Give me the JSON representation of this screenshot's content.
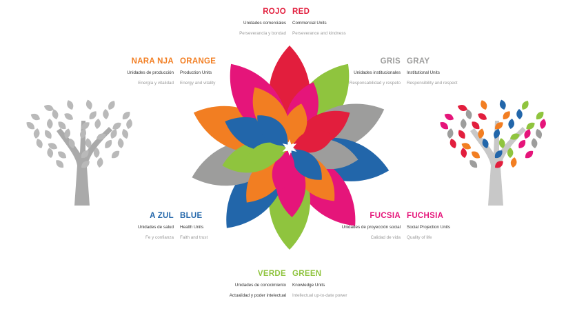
{
  "categories": [
    {
      "key": "red",
      "color": "#e21e3d",
      "es_title": "ROJO",
      "en_title": "RED",
      "es_unit": "Unidades comerciales",
      "en_unit": "Commercial Units",
      "es_value": "Perseverancia y bondad",
      "en_value": "Perseverance and kindness"
    },
    {
      "key": "orange",
      "color": "#f27e22",
      "es_title": "NARA NJA",
      "en_title": "ORANGE",
      "es_unit": "Unidades de producción",
      "en_unit": "Production Units",
      "es_value": "Energía y vitalidad",
      "en_value": "Energy and vitality"
    },
    {
      "key": "gray",
      "color": "#9d9d9c",
      "es_title": "GRIS",
      "en_title": "GRAY",
      "es_unit": "Unidades institucionales",
      "en_unit": "Institutional Units",
      "es_value": "Responsabilidad y respeto",
      "en_value": "Responsibility and respect"
    },
    {
      "key": "blue",
      "color": "#2266aa",
      "es_title": "A ZUL",
      "en_title": "BLUE",
      "es_unit": "Unidades de salud",
      "en_unit": "Health Units",
      "es_value": "Fe y confianza",
      "en_value": "Faith and trust"
    },
    {
      "key": "fuchsia",
      "color": "#e5157a",
      "es_title": "FUCSIA",
      "en_title": "FUCHSIA",
      "es_unit": "Unidades de proyección social",
      "en_unit": "Social Projection Units",
      "es_value": "Calidad de vida",
      "en_value": "Quality of life"
    },
    {
      "key": "green",
      "color": "#8fc43e",
      "es_title": "VERDE",
      "en_title": "GREEN",
      "es_unit": "Unidades de conocimiento",
      "en_unit": "Knowledge Units",
      "es_value": "Actualidad y poder intelectual",
      "en_value": "Intellectual up-to-date power"
    }
  ],
  "colors": {
    "red": "#e21e3d",
    "orange": "#f27e22",
    "gray": "#9d9d9c",
    "blue": "#2266aa",
    "fuchsia": "#e5157a",
    "green": "#8fc43e",
    "tree_gray": "#b9b9b9",
    "tree_trunk_gray": "#aaaaaa",
    "tree_trunk_light": "#c8c8c8"
  }
}
